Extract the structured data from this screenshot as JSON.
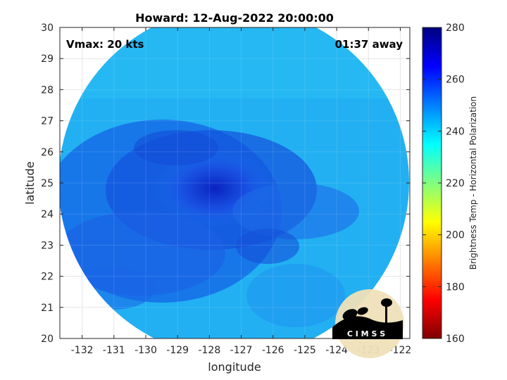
{
  "figure": {
    "title": "Howard: 12-Aug-2022 20:00:00",
    "vmax_text": "Vmax: 20 kts",
    "time_text": "01:37 away",
    "xlabel": "longitude",
    "ylabel": "latitude",
    "colorbar_label": "Brightness Temp - Horizontal Polarization",
    "logo_text": "C I M S S"
  },
  "chart_data": {
    "type": "heatmap",
    "title": "Howard: 12-Aug-2022 20:00:00",
    "xlabel": "longitude",
    "ylabel": "latitude",
    "xlim": [
      -132.7,
      -121.7
    ],
    "ylim": [
      20,
      30
    ],
    "xticks": [
      -132,
      -131,
      -130,
      -129,
      -128,
      -127,
      -126,
      -125,
      -124,
      -123,
      -122
    ],
    "yticks": [
      20,
      21,
      22,
      23,
      24,
      25,
      26,
      27,
      28,
      29,
      30
    ],
    "grid": true,
    "colorbar": {
      "label": "Brightness Temp - Horizontal Polarization",
      "range": [
        160,
        280
      ],
      "ticks": [
        160,
        180,
        200,
        220,
        240,
        260,
        280
      ],
      "colormap": "jet"
    },
    "storm_center": {
      "lon": -127.7,
      "lat": 24.9
    },
    "annotations": [
      "Vmax: 20 kts",
      "01:37 away"
    ]
  },
  "colors": {
    "background_field": "#1aa6f0",
    "cold_core": "#0a2fd6",
    "warm_edge": "#55e0a0"
  }
}
